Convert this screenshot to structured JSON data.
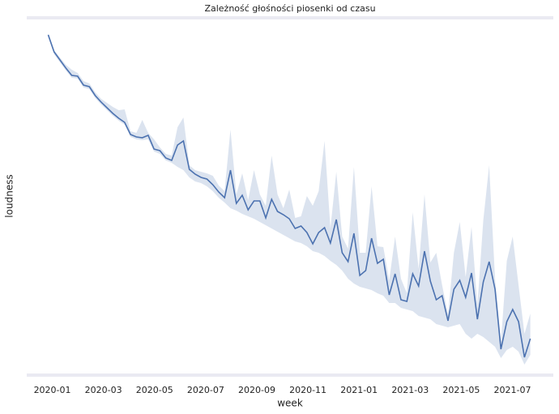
{
  "chart_data": {
    "type": "line",
    "title": "Zależność głośności piosenki od czasu",
    "x_label": "week",
    "y_label": "loudness",
    "x": [
      -0.16,
      0.07,
      0.3,
      0.53,
      0.76,
      0.99,
      1.22,
      1.45,
      1.68,
      1.91,
      2.14,
      2.37,
      2.6,
      2.83,
      3.06,
      3.29,
      3.52,
      3.75,
      3.98,
      4.21,
      4.44,
      4.67,
      4.9,
      5.13,
      5.36,
      5.59,
      5.82,
      6.05,
      6.28,
      6.51,
      6.74,
      6.97,
      7.2,
      7.43,
      7.66,
      7.89,
      8.12,
      8.35,
      8.58,
      8.81,
      9.04,
      9.27,
      9.5,
      9.73,
      9.96,
      10.19,
      10.42,
      10.65,
      10.88,
      11.11,
      11.34,
      11.57,
      11.8,
      12.03,
      12.26,
      12.49,
      12.72,
      12.95,
      13.18,
      13.41,
      13.64,
      13.87,
      14.1,
      14.33,
      14.56,
      14.79,
      15.02,
      15.25,
      15.48,
      15.71,
      15.94,
      16.17,
      16.4,
      16.63,
      16.86,
      17.09,
      17.32,
      17.55,
      17.78,
      18.01,
      18.24,
      18.47,
      18.7
    ],
    "series": [
      {
        "color": "#4c72b0",
        "band_color": "#4c72b0",
        "values": [
          419,
          398,
          388,
          378,
          369,
          368,
          357,
          355,
          344,
          336,
          329,
          322,
          316,
          311,
          296,
          293,
          292,
          295,
          278,
          276,
          267,
          264,
          283,
          288,
          253,
          247,
          243,
          241,
          234,
          225,
          218,
          252,
          211,
          221,
          203,
          214,
          214,
          193,
          216,
          201,
          197,
          192,
          180,
          183,
          175,
          161,
          175,
          181,
          162,
          191,
          150,
          139,
          174,
          122,
          128,
          168,
          137,
          142,
          98,
          124,
          92,
          90,
          124,
          109,
          152,
          115,
          92,
          97,
          66,
          105,
          116,
          95,
          125,
          68,
          114,
          139,
          105,
          31,
          65,
          80,
          65,
          21,
          44
        ],
        "upper": [
          421,
          400,
          391,
          382,
          376,
          372,
          362,
          359,
          348,
          340,
          335,
          330,
          326,
          327,
          300,
          298,
          314,
          298,
          290,
          280,
          272,
          270,
          305,
          317,
          258,
          252,
          250,
          248,
          245,
          233,
          226,
          302,
          222,
          248,
          215,
          252,
          222,
          208,
          270,
          222,
          205,
          228,
          193,
          195,
          220,
          208,
          226,
          288,
          180,
          250,
          170,
          155,
          256,
          150,
          150,
          232,
          158,
          157,
          116,
          170,
          118,
          100,
          200,
          130,
          222,
          138,
          150,
          110,
          74,
          150,
          188,
          120,
          182,
          85,
          190,
          258,
          118,
          40,
          140,
          170,
          110,
          50,
          75
        ],
        "lower": [
          416,
          395,
          385,
          375,
          366,
          365,
          354,
          352,
          341,
          333,
          326,
          319,
          313,
          308,
          293,
          290,
          289,
          290,
          275,
          272,
          264,
          261,
          256,
          252,
          243,
          238,
          236,
          232,
          226,
          218,
          212,
          205,
          202,
          198,
          195,
          192,
          188,
          184,
          180,
          176,
          172,
          168,
          164,
          162,
          158,
          152,
          150,
          146,
          140,
          135,
          128,
          118,
          112,
          108,
          106,
          104,
          100,
          97,
          88,
          88,
          82,
          80,
          78,
          72,
          70,
          68,
          62,
          60,
          58,
          60,
          62,
          50,
          44,
          50,
          46,
          40,
          34,
          20,
          30,
          34,
          28,
          12,
          24
        ]
      }
    ],
    "xlim": [
      -1.0,
      19.6
    ],
    "ylim": [
      0,
      440
    ],
    "xticks": [
      {
        "value": 0,
        "label": "2020-01"
      },
      {
        "value": 2,
        "label": "2020-03"
      },
      {
        "value": 4,
        "label": "2020-05"
      },
      {
        "value": 6,
        "label": "2020-07"
      },
      {
        "value": 8,
        "label": "2020-09"
      },
      {
        "value": 10,
        "label": "2020-11"
      },
      {
        "value": 12,
        "label": "2021-01"
      },
      {
        "value": 14,
        "label": "2021-03"
      },
      {
        "value": 16,
        "label": "2021-05"
      },
      {
        "value": 18,
        "label": "2021-07"
      }
    ]
  }
}
